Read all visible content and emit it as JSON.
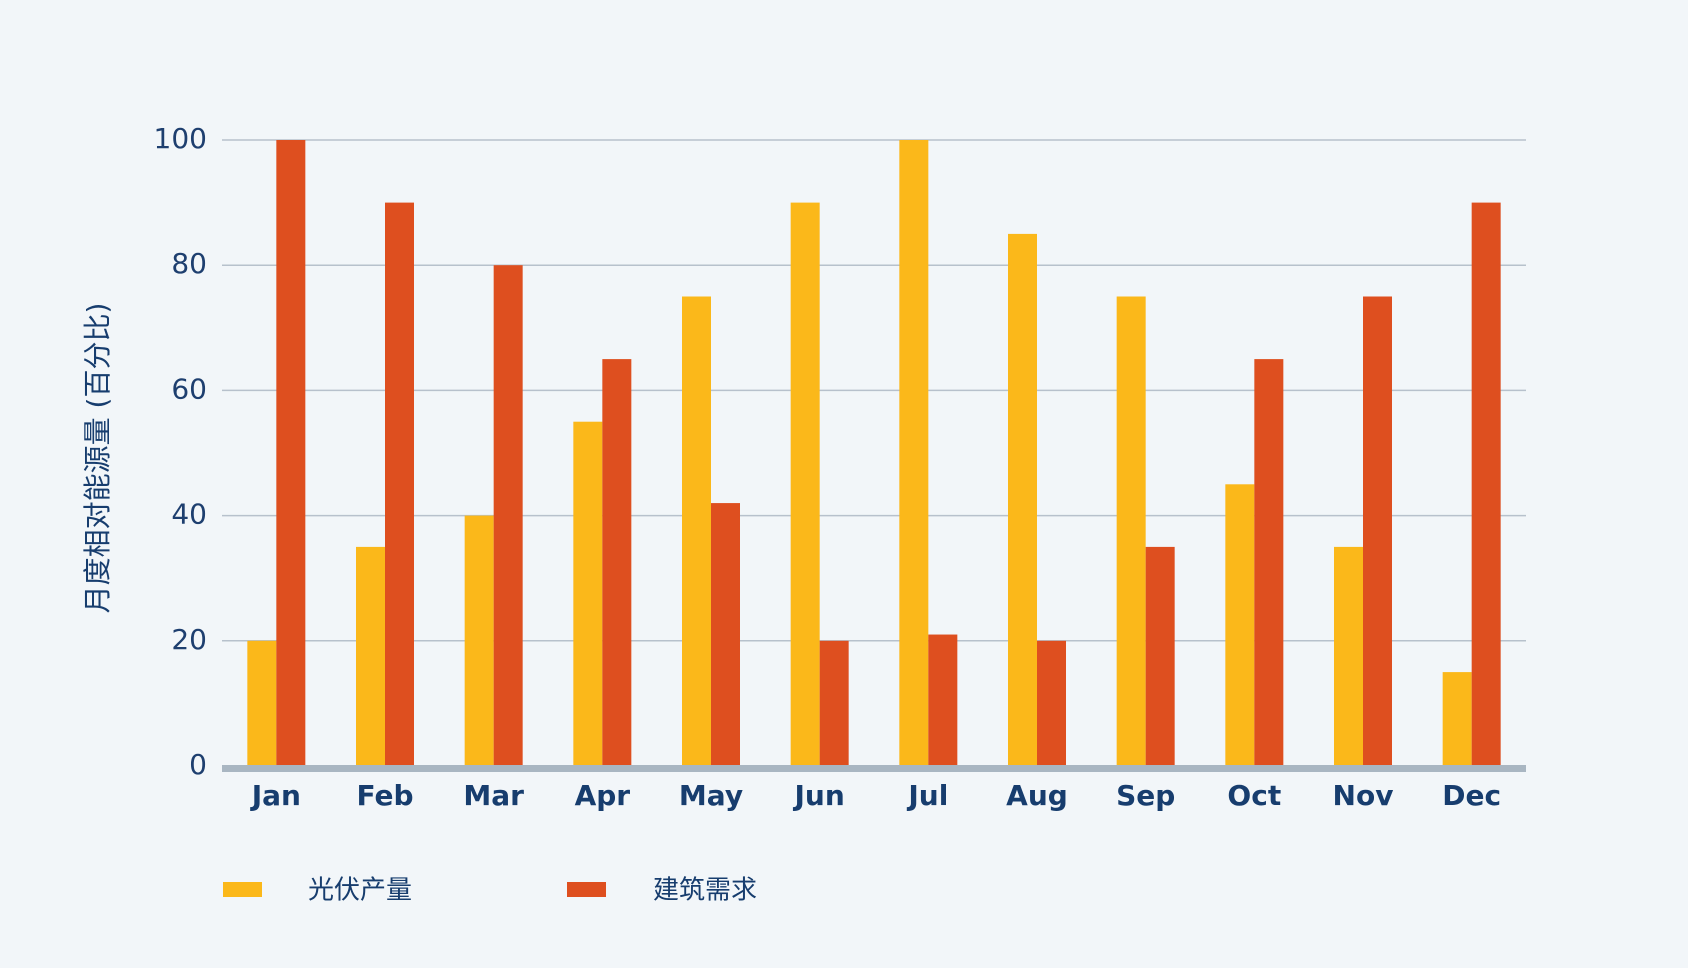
{
  "chart_data": {
    "type": "bar",
    "ylabel": "月度相对能源量 (百分比)",
    "xlabel": "",
    "ylim": [
      0,
      100
    ],
    "yticks": [
      "0",
      "20",
      "40",
      "60",
      "80",
      "100"
    ],
    "grid": true,
    "legend_position": "bottom-left",
    "categories": [
      "Jan",
      "Feb",
      "Mar",
      "Apr",
      "May",
      "Jun",
      "Jul",
      "Aug",
      "Sep",
      "Oct",
      "Nov",
      "Dec"
    ],
    "series": [
      {
        "name": "光伏产量",
        "color": "#fbb81a",
        "values": [
          20,
          35,
          40,
          55,
          75,
          90,
          100,
          85,
          75,
          45,
          35,
          15
        ]
      },
      {
        "name": "建筑需求",
        "color": "#de4f1f",
        "values": [
          100,
          90,
          80,
          65,
          42,
          20,
          21,
          20,
          35,
          65,
          75,
          90
        ]
      }
    ],
    "colors": {
      "gridline": "#b7c1cc",
      "baseline": "#a9b6c2",
      "text": "#173d6e",
      "background": "#f2f6f9"
    }
  }
}
